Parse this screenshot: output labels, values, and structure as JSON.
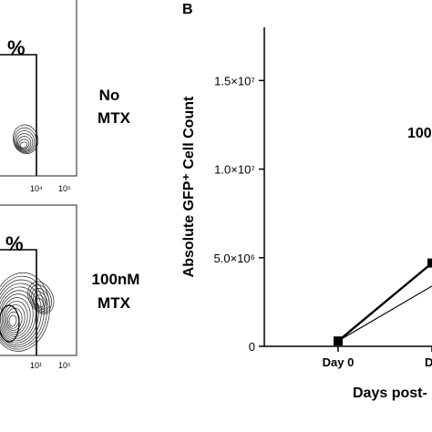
{
  "panels": {
    "flow_panel": {
      "top_plot": {
        "pct_label": "%",
        "x_ticks": [
          "10⁴",
          "10⁵"
        ],
        "condition_label": [
          "No",
          "MTX"
        ]
      },
      "bottom_plot": {
        "pct_label": "%",
        "x_ticks": [
          "10¹",
          "10⁵"
        ],
        "condition_label": [
          "100nM",
          "MTX"
        ]
      }
    },
    "panel_b_label": "B"
  },
  "chart_data": {
    "type": "line",
    "ylabel": "Absolute GFP⁺ Cell Count",
    "xlabel": "Days post-",
    "categories": [
      "Day 0",
      "D"
    ],
    "ylim": [
      0,
      18000000
    ],
    "y_ticks": [
      {
        "value": 0,
        "label": "0"
      },
      {
        "value": 5000000,
        "label": "5.0×10⁶"
      },
      {
        "value": 10000000,
        "label": "1.0×10⁷"
      },
      {
        "value": 15000000,
        "label": "1.5×10⁷"
      }
    ],
    "annotation": "100",
    "series": [
      {
        "style": "thick",
        "marker": "square",
        "values": [
          300000,
          4700000
        ]
      },
      {
        "style": "thin",
        "marker": "none",
        "values": [
          300000,
          3400000
        ]
      }
    ]
  }
}
